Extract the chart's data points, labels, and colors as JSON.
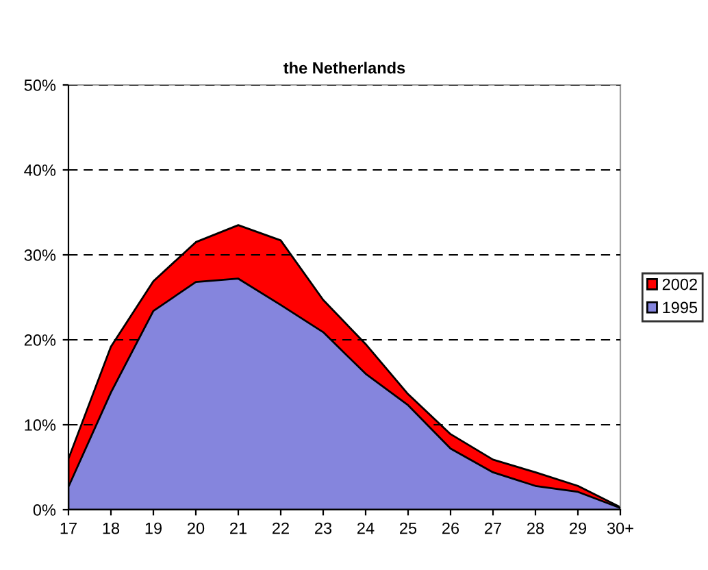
{
  "chart_data": {
    "type": "area",
    "title": "the Netherlands",
    "categories": [
      "17",
      "18",
      "19",
      "20",
      "21",
      "22",
      "23",
      "24",
      "25",
      "26",
      "27",
      "28",
      "29",
      "30+"
    ],
    "series": [
      {
        "name": "2002",
        "color": "#ff0000",
        "values": [
          6,
          19.2,
          26.9,
          31.5,
          33.5,
          31.7,
          24.7,
          19.5,
          13.6,
          8.9,
          5.9,
          4.4,
          2.8,
          0.3
        ]
      },
      {
        "name": "1995",
        "color": "#8585dd",
        "values": [
          2.7,
          13.8,
          23.4,
          26.8,
          27.2,
          24.1,
          20.9,
          16,
          12.3,
          7.2,
          4.4,
          2.8,
          2.1,
          0.2
        ]
      }
    ],
    "ylim": [
      0,
      50
    ],
    "yticks": [
      {
        "value": 0,
        "label": "0%"
      },
      {
        "value": 10,
        "label": "10%"
      },
      {
        "value": 20,
        "label": "20%"
      },
      {
        "value": 30,
        "label": "30%"
      },
      {
        "value": 40,
        "label": "40%"
      },
      {
        "value": 50,
        "label": "50%"
      }
    ],
    "grid": "y",
    "legend": "right"
  }
}
